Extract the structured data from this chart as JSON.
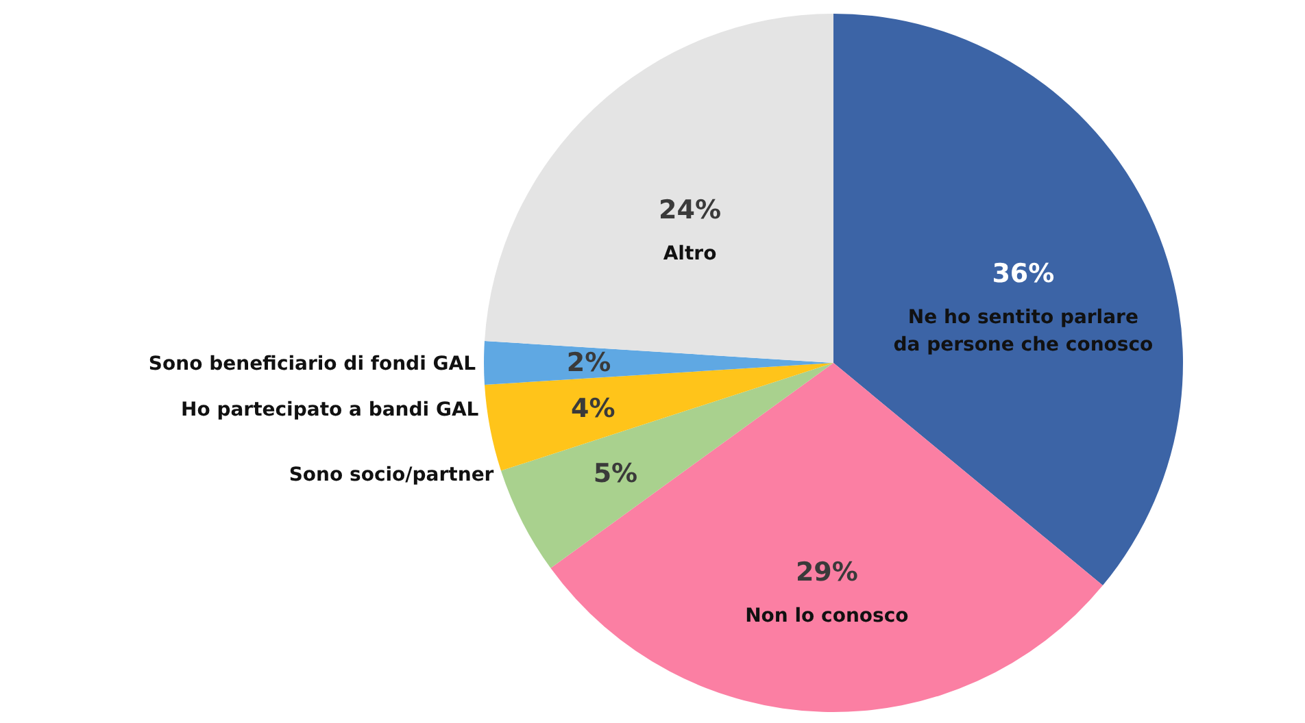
{
  "chart_data": {
    "type": "pie",
    "categories": [
      "Ne ho sentito parlare da persone che conosco",
      "Non lo conosco",
      "Sono socio/partner",
      "Ho partecipato a bandi GAL",
      "Sono beneficiario di fondi GAL",
      "Altro"
    ],
    "values": [
      36,
      29,
      5,
      4,
      2,
      24
    ],
    "colors": [
      "#3c64a6",
      "#fb7fa3",
      "#a9d18e",
      "#ffc41a",
      "#5fa8e3",
      "#e4e4e4"
    ],
    "value_labels": [
      "36%",
      "29%",
      "5%",
      "4%",
      "2%",
      "24%"
    ]
  }
}
